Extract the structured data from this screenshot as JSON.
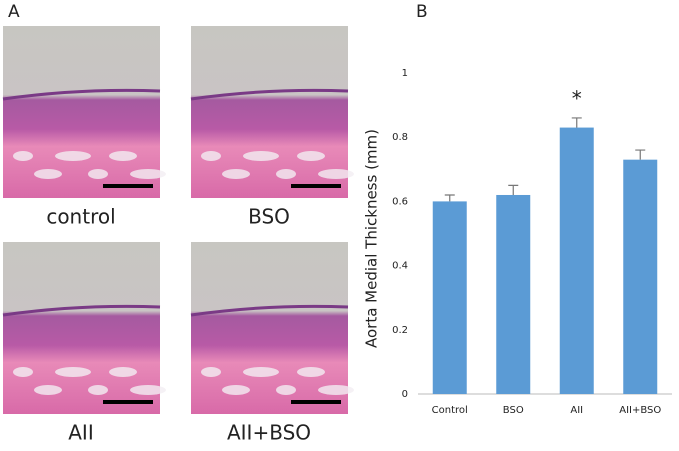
{
  "panels": {
    "a_label": "A",
    "b_label": "B"
  },
  "images": [
    {
      "caption": "control"
    },
    {
      "caption": "BSO"
    },
    {
      "caption": "AII"
    },
    {
      "caption": "AII+BSO"
    }
  ],
  "chart_data": {
    "type": "bar",
    "y_label": "Aorta Medial Thickness (mm)",
    "categories": [
      "Control",
      "BSO",
      "AII",
      "AII+BSO"
    ],
    "values": [
      0.6,
      0.62,
      0.83,
      0.73
    ],
    "errors": [
      0.02,
      0.03,
      0.03,
      0.03
    ],
    "color": "#5b9bd5",
    "annotation": "*",
    "ylim": [
      0,
      1
    ],
    "yticks": [
      0,
      0.2,
      0.4,
      0.6,
      0.8,
      1
    ],
    "grid": false
  }
}
